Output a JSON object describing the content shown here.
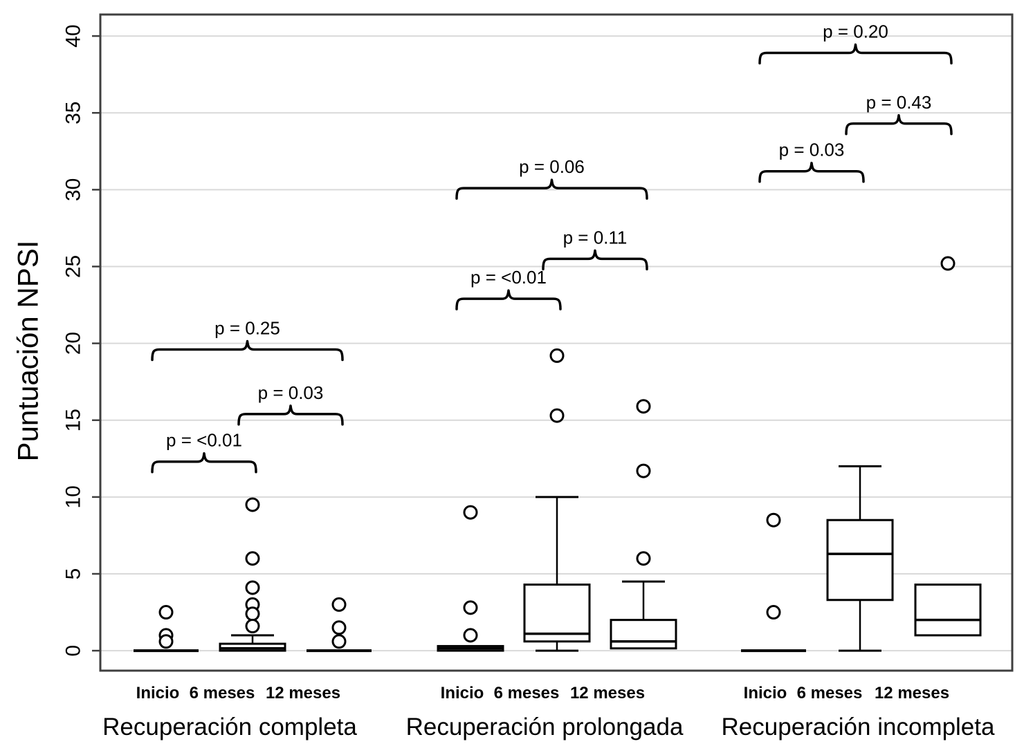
{
  "figure": {
    "background": "#ffffff",
    "border_color": "#3f3f3f",
    "grid_color": "#d9d9d9",
    "ink_color": "#000000"
  },
  "chart_data": {
    "type": "boxplot",
    "title": "",
    "ylabel": "Puntuación NPSI",
    "xlabel": "",
    "ylim": [
      -1.3,
      41.4
    ],
    "yticks": [
      0,
      5,
      10,
      15,
      20,
      25,
      30,
      35,
      40
    ],
    "grid": "horizontal",
    "legend": "none",
    "categories": [
      "Inicio",
      "6 meses",
      "12 meses"
    ],
    "groups": [
      {
        "label": "Recuperación completa",
        "boxes": [
          {
            "category": "Inicio",
            "flat": true,
            "median": 0,
            "q1": 0,
            "q3": 0,
            "whisker_low": 0,
            "whisker_high": 0,
            "outliers": [
              2.5,
              1.0,
              0.6
            ]
          },
          {
            "category": "6 meses",
            "flat": false,
            "median": 0.15,
            "q1": 0,
            "q3": 0.45,
            "whisker_low": 0,
            "whisker_high": 1.0,
            "outliers": [
              9.5,
              6.0,
              4.1,
              3.0,
              2.4,
              1.6
            ]
          },
          {
            "category": "12 meses",
            "flat": true,
            "median": 0,
            "q1": 0,
            "q3": 0,
            "whisker_low": 0,
            "whisker_high": 0,
            "outliers": [
              3.0,
              1.5,
              0.6
            ]
          }
        ],
        "comparisons": [
          {
            "from": 0,
            "to": 1,
            "label": "p = <0.01",
            "height": 12.3
          },
          {
            "from": 1,
            "to": 2,
            "label": "p = 0.03",
            "height": 15.4
          },
          {
            "from": 0,
            "to": 2,
            "label": "p = 0.25",
            "height": 19.6
          }
        ]
      },
      {
        "label": "Recuperación prolongada",
        "boxes": [
          {
            "category": "Inicio",
            "flat": false,
            "median": 0.15,
            "q1": 0,
            "q3": 0.3,
            "whisker_low": 0,
            "whisker_high": 0.3,
            "outliers": [
              9.0,
              2.8,
              1.0
            ]
          },
          {
            "category": "6 meses",
            "flat": false,
            "median": 1.1,
            "q1": 0.6,
            "q3": 4.3,
            "whisker_low": 0,
            "whisker_high": 10.0,
            "outliers": [
              19.2,
              15.3
            ]
          },
          {
            "category": "12 meses",
            "flat": false,
            "median": 0.6,
            "q1": 0.15,
            "q3": 2.0,
            "whisker_low": 0.15,
            "whisker_high": 4.5,
            "outliers": [
              15.9,
              11.7,
              6.0
            ]
          }
        ],
        "comparisons": [
          {
            "from": 0,
            "to": 1,
            "label": "p = <0.01",
            "height": 22.9
          },
          {
            "from": 1,
            "to": 2,
            "label": "p = 0.11",
            "height": 25.5
          },
          {
            "from": 0,
            "to": 2,
            "label": "p = 0.06",
            "height": 30.1
          }
        ]
      },
      {
        "label": "Recuperación incompleta",
        "boxes": [
          {
            "category": "Inicio",
            "flat": true,
            "median": 0,
            "q1": 0,
            "q3": 0,
            "whisker_low": 0,
            "whisker_high": 0,
            "outliers": [
              8.5,
              2.5
            ]
          },
          {
            "category": "6 meses",
            "flat": false,
            "median": 6.3,
            "q1": 3.3,
            "q3": 8.5,
            "whisker_low": 0,
            "whisker_high": 12.0,
            "outliers": []
          },
          {
            "category": "12 meses",
            "flat": false,
            "median": 2.0,
            "q1": 1.0,
            "q3": 4.3,
            "whisker_low": 1.0,
            "whisker_high": 4.3,
            "outliers": [
              25.2
            ]
          }
        ],
        "comparisons": [
          {
            "from": 0,
            "to": 1,
            "label": "p = 0.03",
            "height": 31.2
          },
          {
            "from": 1,
            "to": 2,
            "label": "p = 0.43",
            "height": 34.3
          },
          {
            "from": 0,
            "to": 2,
            "label": "p = 0.20",
            "height": 38.9
          }
        ]
      }
    ]
  }
}
